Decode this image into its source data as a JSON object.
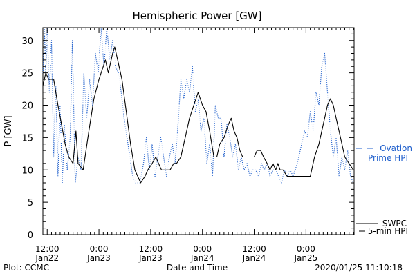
{
  "chart_data": {
    "type": "line",
    "title": "Hemispheric Power [GW]",
    "ylabel": "P [GW]",
    "xlabel": "Date and Time",
    "footer_left": "Plot: CCMC",
    "footer_right": "2020/01/25 11:10:18",
    "ylim": [
      0,
      32
    ],
    "yticks": [
      0,
      5,
      10,
      15,
      20,
      25,
      30
    ],
    "xlim": [
      "2020-01-22T11:00",
      "2020-01-25T11:10"
    ],
    "xticks": [
      {
        "at": "2020-01-22T12:00",
        "line1": "12:00",
        "line2": "Jan22"
      },
      {
        "at": "2020-01-23T00:00",
        "line1": "0:00",
        "line2": "Jan23"
      },
      {
        "at": "2020-01-23T12:00",
        "line1": "12:00",
        "line2": "Jan23"
      },
      {
        "at": "2020-01-24T00:00",
        "line1": "0:00",
        "line2": "Jan24"
      },
      {
        "at": "2020-01-24T12:00",
        "line1": "12:00",
        "line2": "Jan24"
      },
      {
        "at": "2020-01-25T00:00",
        "line1": "0:00",
        "line2": "Jan25"
      }
    ],
    "colors": {
      "swpc": "#000000",
      "ovation": "#1f5fcc"
    },
    "legend": [
      {
        "key": "ovation",
        "line1": "Ovation",
        "line2": "Prime HPI"
      },
      {
        "key": "swpc",
        "line1": "SWPC",
        "line2": "5-min HPI"
      }
    ],
    "series": [
      {
        "key": "swpc",
        "style": "solid",
        "points": [
          [
            "2020-01-22T11:00",
            23
          ],
          [
            "2020-01-22T11:40",
            25
          ],
          [
            "2020-01-22T12:20",
            24
          ],
          [
            "2020-01-22T13:30",
            24
          ],
          [
            "2020-01-22T14:30",
            20
          ],
          [
            "2020-01-22T15:20",
            17
          ],
          [
            "2020-01-22T16:10",
            14
          ],
          [
            "2020-01-22T17:00",
            12
          ],
          [
            "2020-01-22T18:00",
            11
          ],
          [
            "2020-01-22T18:40",
            16
          ],
          [
            "2020-01-22T19:10",
            11
          ],
          [
            "2020-01-22T20:20",
            10
          ],
          [
            "2020-01-22T21:40",
            16
          ],
          [
            "2020-01-22T22:50",
            21
          ],
          [
            "2020-01-23T00:00",
            24
          ],
          [
            "2020-01-23T01:00",
            26
          ],
          [
            "2020-01-23T01:30",
            27
          ],
          [
            "2020-01-23T02:10",
            25
          ],
          [
            "2020-01-23T03:10",
            28
          ],
          [
            "2020-01-23T03:40",
            29
          ],
          [
            "2020-01-23T04:20",
            27
          ],
          [
            "2020-01-23T05:20",
            24
          ],
          [
            "2020-01-23T06:20",
            19
          ],
          [
            "2020-01-23T07:20",
            14
          ],
          [
            "2020-01-23T08:20",
            10
          ],
          [
            "2020-01-23T09:00",
            9
          ],
          [
            "2020-01-23T09:40",
            8
          ],
          [
            "2020-01-23T10:40",
            9
          ],
          [
            "2020-01-23T11:20",
            10
          ],
          [
            "2020-01-23T12:20",
            11
          ],
          [
            "2020-01-23T13:10",
            12
          ],
          [
            "2020-01-23T13:50",
            11
          ],
          [
            "2020-01-23T14:30",
            10
          ],
          [
            "2020-01-23T16:30",
            10
          ],
          [
            "2020-01-23T17:20",
            11
          ],
          [
            "2020-01-23T18:00",
            11
          ],
          [
            "2020-01-23T19:00",
            12
          ],
          [
            "2020-01-23T20:00",
            15
          ],
          [
            "2020-01-23T21:00",
            18
          ],
          [
            "2020-01-23T22:00",
            20
          ],
          [
            "2020-01-23T23:00",
            22
          ],
          [
            "2020-01-24T00:00",
            20
          ],
          [
            "2020-01-24T00:50",
            19
          ],
          [
            "2020-01-24T01:40",
            16
          ],
          [
            "2020-01-24T02:40",
            12
          ],
          [
            "2020-01-24T03:20",
            12
          ],
          [
            "2020-01-24T04:00",
            14
          ],
          [
            "2020-01-24T05:00",
            15
          ],
          [
            "2020-01-24T06:00",
            17
          ],
          [
            "2020-01-24T06:40",
            18
          ],
          [
            "2020-01-24T07:20",
            16
          ],
          [
            "2020-01-24T08:00",
            15
          ],
          [
            "2020-01-24T08:40",
            13
          ],
          [
            "2020-01-24T09:20",
            12
          ],
          [
            "2020-01-24T12:00",
            12
          ],
          [
            "2020-01-24T12:40",
            13
          ],
          [
            "2020-01-24T13:30",
            13
          ],
          [
            "2020-01-24T14:10",
            12
          ],
          [
            "2020-01-24T15:00",
            11
          ],
          [
            "2020-01-24T15:40",
            10
          ],
          [
            "2020-01-24T16:20",
            11
          ],
          [
            "2020-01-24T17:00",
            10
          ],
          [
            "2020-01-24T17:30",
            11
          ],
          [
            "2020-01-24T18:00",
            10
          ],
          [
            "2020-01-24T18:40",
            10
          ],
          [
            "2020-01-24T19:40",
            9
          ],
          [
            "2020-01-24T22:00",
            9
          ],
          [
            "2020-01-25T00:00",
            9
          ],
          [
            "2020-01-25T01:00",
            9
          ],
          [
            "2020-01-25T02:00",
            12
          ],
          [
            "2020-01-25T03:00",
            14
          ],
          [
            "2020-01-25T04:00",
            17
          ],
          [
            "2020-01-25T05:00",
            20
          ],
          [
            "2020-01-25T05:40",
            21
          ],
          [
            "2020-01-25T06:20",
            20
          ],
          [
            "2020-01-25T07:00",
            18
          ],
          [
            "2020-01-25T08:00",
            15
          ],
          [
            "2020-01-25T09:00",
            12
          ],
          [
            "2020-01-25T10:00",
            11
          ],
          [
            "2020-01-25T11:00",
            10
          ]
        ]
      },
      {
        "key": "ovation",
        "style": "dotted",
        "points": [
          [
            "2020-01-22T11:00",
            24
          ],
          [
            "2020-01-22T11:20",
            32
          ],
          [
            "2020-01-22T11:40",
            25
          ],
          [
            "2020-01-22T12:00",
            32
          ],
          [
            "2020-01-22T12:30",
            22
          ],
          [
            "2020-01-22T13:00",
            30
          ],
          [
            "2020-01-22T13:30",
            12
          ],
          [
            "2020-01-22T14:00",
            23
          ],
          [
            "2020-01-22T14:30",
            9
          ],
          [
            "2020-01-22T15:00",
            20
          ],
          [
            "2020-01-22T15:30",
            8
          ],
          [
            "2020-01-22T16:00",
            17
          ],
          [
            "2020-01-22T16:40",
            10
          ],
          [
            "2020-01-22T17:20",
            15
          ],
          [
            "2020-01-22T17:50",
            30
          ],
          [
            "2020-01-22T18:30",
            8
          ],
          [
            "2020-01-22T19:10",
            12
          ],
          [
            "2020-01-22T19:50",
            10
          ],
          [
            "2020-01-22T20:30",
            25
          ],
          [
            "2020-01-22T21:10",
            18
          ],
          [
            "2020-01-22T21:50",
            24
          ],
          [
            "2020-01-22T22:30",
            20
          ],
          [
            "2020-01-22T23:10",
            28
          ],
          [
            "2020-01-22T23:50",
            25
          ],
          [
            "2020-01-23T00:30",
            32
          ],
          [
            "2020-01-23T01:10",
            26
          ],
          [
            "2020-01-23T01:50",
            32
          ],
          [
            "2020-01-23T02:30",
            27
          ],
          [
            "2020-01-23T03:10",
            30
          ],
          [
            "2020-01-23T03:50",
            26
          ],
          [
            "2020-01-23T04:30",
            25
          ],
          [
            "2020-01-23T05:10",
            22
          ],
          [
            "2020-01-23T05:50",
            18
          ],
          [
            "2020-01-23T06:30",
            15
          ],
          [
            "2020-01-23T07:10",
            12
          ],
          [
            "2020-01-23T07:50",
            9
          ],
          [
            "2020-01-23T08:30",
            8
          ],
          [
            "2020-01-23T09:30",
            8
          ],
          [
            "2020-01-23T10:20",
            11
          ],
          [
            "2020-01-23T11:00",
            15
          ],
          [
            "2020-01-23T11:40",
            10
          ],
          [
            "2020-01-23T12:20",
            14
          ],
          [
            "2020-01-23T13:00",
            9
          ],
          [
            "2020-01-23T13:40",
            12
          ],
          [
            "2020-01-23T14:20",
            15
          ],
          [
            "2020-01-23T15:00",
            12
          ],
          [
            "2020-01-23T15:40",
            9
          ],
          [
            "2020-01-23T16:20",
            12
          ],
          [
            "2020-01-23T17:00",
            14
          ],
          [
            "2020-01-23T17:40",
            11
          ],
          [
            "2020-01-23T18:20",
            17
          ],
          [
            "2020-01-23T19:00",
            24
          ],
          [
            "2020-01-23T19:40",
            21
          ],
          [
            "2020-01-23T20:20",
            24
          ],
          [
            "2020-01-23T21:00",
            22
          ],
          [
            "2020-01-23T21:40",
            26
          ],
          [
            "2020-01-23T22:20",
            19
          ],
          [
            "2020-01-23T23:00",
            21
          ],
          [
            "2020-01-23T23:40",
            16
          ],
          [
            "2020-01-24T00:20",
            18
          ],
          [
            "2020-01-24T01:00",
            11
          ],
          [
            "2020-01-24T01:40",
            14
          ],
          [
            "2020-01-24T02:20",
            9
          ],
          [
            "2020-01-24T03:00",
            20
          ],
          [
            "2020-01-24T03:40",
            18
          ],
          [
            "2020-01-24T04:20",
            18
          ],
          [
            "2020-01-24T05:00",
            12
          ],
          [
            "2020-01-24T05:40",
            17
          ],
          [
            "2020-01-24T06:20",
            15
          ],
          [
            "2020-01-24T07:00",
            12
          ],
          [
            "2020-01-24T07:40",
            14
          ],
          [
            "2020-01-24T08:20",
            10
          ],
          [
            "2020-01-24T09:00",
            12
          ],
          [
            "2020-01-24T09:40",
            10
          ],
          [
            "2020-01-24T10:20",
            11
          ],
          [
            "2020-01-24T11:00",
            9
          ],
          [
            "2020-01-24T11:40",
            10
          ],
          [
            "2020-01-24T12:20",
            10
          ],
          [
            "2020-01-24T13:00",
            9
          ],
          [
            "2020-01-24T13:40",
            11
          ],
          [
            "2020-01-24T14:20",
            10
          ],
          [
            "2020-01-24T15:00",
            11
          ],
          [
            "2020-01-24T15:40",
            9
          ],
          [
            "2020-01-24T16:20",
            10
          ],
          [
            "2020-01-24T17:00",
            10
          ],
          [
            "2020-01-24T17:40",
            9
          ],
          [
            "2020-01-24T18:20",
            8
          ],
          [
            "2020-01-24T19:00",
            10
          ],
          [
            "2020-01-24T19:40",
            9
          ],
          [
            "2020-01-24T20:20",
            10
          ],
          [
            "2020-01-24T21:00",
            9
          ],
          [
            "2020-01-24T22:00",
            11
          ],
          [
            "2020-01-24T23:00",
            14
          ],
          [
            "2020-01-24T23:40",
            16
          ],
          [
            "2020-01-25T00:20",
            15
          ],
          [
            "2020-01-25T01:00",
            19
          ],
          [
            "2020-01-25T01:40",
            16
          ],
          [
            "2020-01-25T02:20",
            22
          ],
          [
            "2020-01-25T03:00",
            20
          ],
          [
            "2020-01-25T03:40",
            26
          ],
          [
            "2020-01-25T04:20",
            28
          ],
          [
            "2020-01-25T05:00",
            22
          ],
          [
            "2020-01-25T05:40",
            16
          ],
          [
            "2020-01-25T06:20",
            12
          ],
          [
            "2020-01-25T07:00",
            15
          ],
          [
            "2020-01-25T07:40",
            9
          ],
          [
            "2020-01-25T08:20",
            12
          ],
          [
            "2020-01-25T09:00",
            10
          ],
          [
            "2020-01-25T09:40",
            13
          ],
          [
            "2020-01-25T10:20",
            9
          ],
          [
            "2020-01-25T11:00",
            8
          ]
        ]
      }
    ]
  }
}
